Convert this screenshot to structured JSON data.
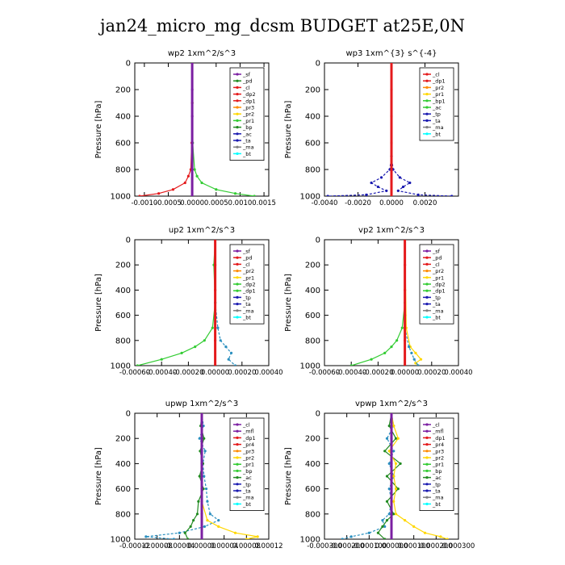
{
  "title": "jan24_micro_mg_dcsm  BUDGET at25E,0N",
  "colors": {
    "red": "#e41a1c",
    "purple": "#7b1fa2",
    "orange": "#ff8c00",
    "yellow": "#ffd700",
    "green": "#33cc33",
    "darkgreen": "#228b22",
    "navy": "#1a1ab0",
    "teal": "#2a8fbf",
    "cyan": "#00ffff",
    "gray": "#808080"
  },
  "chart_data": [
    {
      "type": "line",
      "title": "wp2   1xm^2/s^3",
      "ylabel": "Pressure [hPa]",
      "xlim": [
        -0.0012,
        0.0016
      ],
      "ylim": [
        1000,
        0
      ],
      "xticks": [
        "-0.0010",
        "-0.0005",
        "0.0000",
        "0.0005",
        "0.0010",
        "0.0015"
      ],
      "xtick_values": [
        -0.001,
        -0.0005,
        0.0,
        0.0005,
        0.001,
        0.0015
      ],
      "yticks": [
        "0",
        "200",
        "400",
        "600",
        "800",
        "1000"
      ],
      "legend": [
        "_sf",
        "_pd",
        "_cl",
        "_dp2",
        "_dp1",
        "_pr3",
        "_pr2",
        "_pr1",
        "_bp",
        "_ac",
        "_ta",
        "_ma",
        "_bt"
      ],
      "legend_colors": [
        "purple",
        "darkgreen",
        "red",
        "red",
        "red",
        "orange",
        "yellow",
        "green",
        "darkgreen",
        "navy",
        "navy",
        "gray",
        "cyan"
      ],
      "legend_box": "upper-right",
      "series": [
        {
          "name": "_pr1",
          "color": "green",
          "p": [
            0,
            300,
            600,
            800,
            850,
            900,
            950,
            980,
            1000
          ],
          "v": [
            0.0,
            0.0,
            1e-05,
            5e-05,
            0.0001,
            0.0002,
            0.0005,
            0.0009,
            0.0013
          ]
        },
        {
          "name": "_cl",
          "color": "red",
          "p": [
            0,
            300,
            600,
            800,
            850,
            900,
            950,
            980,
            1000
          ],
          "v": [
            0.0,
            0.0,
            -1e-05,
            -3e-05,
            -8e-05,
            -0.00015,
            -0.0004,
            -0.0007,
            -0.0011
          ]
        },
        {
          "name": "_bt",
          "color": "purple",
          "p": [
            0,
            200,
            400,
            600,
            800,
            1000
          ],
          "v": [
            0.0,
            0.0,
            0.0,
            0.0,
            0.0,
            0.0
          ]
        }
      ]
    },
    {
      "type": "line",
      "title": "wp3   1xm^{3} s^{-4}",
      "ylabel": "Pressure [hPa]",
      "xlim": [
        -0.004,
        0.004
      ],
      "ylim": [
        1000,
        0
      ],
      "xticks": [
        "-0.0040",
        "-0.0020",
        "0.0000",
        "0.0020"
      ],
      "xtick_values": [
        -0.004,
        -0.002,
        0.0,
        0.002
      ],
      "yticks": [
        "0",
        "200",
        "400",
        "600",
        "800",
        "1000"
      ],
      "legend": [
        "_cl",
        "_dp1",
        "_pr2",
        "_pr1",
        "_bp1",
        "_ac",
        "_tp",
        "_ta",
        "_ma",
        "_bt"
      ],
      "legend_colors": [
        "red",
        "red",
        "orange",
        "yellow",
        "green",
        "green",
        "navy",
        "navy",
        "gray",
        "cyan"
      ],
      "legend_box": "upper-right",
      "series": [
        {
          "name": "_tp",
          "color": "navy",
          "p": [
            0,
            700,
            800,
            860,
            900,
            930,
            960,
            990,
            1000
          ],
          "v": [
            0.0,
            0.0,
            -0.0001,
            -0.0006,
            -0.0012,
            -0.0008,
            -0.0003,
            -0.0015,
            -0.0038
          ]
        },
        {
          "name": "_ta",
          "color": "navy",
          "p": [
            0,
            700,
            800,
            860,
            900,
            930,
            960,
            990,
            1000
          ],
          "v": [
            0.0,
            0.0,
            0.0001,
            0.0005,
            0.0011,
            0.0007,
            0.0004,
            0.0016,
            0.0036
          ]
        },
        {
          "name": "_cl",
          "color": "red",
          "p": [
            0,
            200,
            400,
            600,
            800,
            1000
          ],
          "v": [
            0.0,
            0.0,
            0.0,
            0.0,
            0.0,
            0.0
          ]
        }
      ]
    },
    {
      "type": "line",
      "title": "up2   1xm^2/s^3",
      "ylabel": "Pressure [hPa]",
      "xlim": [
        -0.0006,
        0.0004
      ],
      "ylim": [
        1000,
        0
      ],
      "xticks": [
        "-0.00060",
        "-0.00040",
        "-0.00020",
        "0.00000",
        "0.00020",
        "0.00040"
      ],
      "xtick_values": [
        -0.0006,
        -0.0004,
        -0.0002,
        0.0,
        0.0002,
        0.0004
      ],
      "yticks": [
        "0",
        "200",
        "400",
        "600",
        "800",
        "1000"
      ],
      "legend": [
        "_sf",
        "_pd",
        "_cl",
        "_pr2",
        "_pr1",
        "_dp2",
        "_dp1",
        "_tp",
        "_ta",
        "_ma",
        "_bt"
      ],
      "legend_colors": [
        "purple",
        "red",
        "red",
        "orange",
        "yellow",
        "green",
        "green",
        "navy",
        "navy",
        "gray",
        "cyan"
      ],
      "legend_box": "upper-right",
      "series": [
        {
          "name": "_pr1",
          "color": "green",
          "p": [
            0,
            200,
            500,
            700,
            800,
            850,
            900,
            950,
            1000
          ],
          "v": [
            0.0,
            -1e-05,
            0.0,
            -2e-05,
            -8e-05,
            -0.00015,
            -0.00025,
            -0.0004,
            -0.00058
          ]
        },
        {
          "name": "_tp",
          "color": "teal",
          "p": [
            0,
            500,
            700,
            800,
            850,
            900,
            950,
            1000
          ],
          "v": [
            0.0,
            0.0,
            2e-05,
            4e-05,
            8e-05,
            0.00012,
            0.0001,
            0.00015
          ]
        },
        {
          "name": "_cl",
          "color": "red",
          "p": [
            0,
            200,
            400,
            600,
            800,
            1000
          ],
          "v": [
            0.0,
            0.0,
            0.0,
            0.0,
            0.0,
            0.0
          ]
        }
      ]
    },
    {
      "type": "line",
      "title": "vp2   1xm^2/s^3",
      "ylabel": "Pressure [hPa]",
      "xlim": [
        -0.0006,
        0.0004
      ],
      "ylim": [
        1000,
        0
      ],
      "xticks": [
        "-0.00060",
        "-0.00040",
        "-0.00020",
        "0.00000",
        "0.00020",
        "0.00040"
      ],
      "xtick_values": [
        -0.0006,
        -0.0004,
        -0.0002,
        0.0,
        0.0002,
        0.0004
      ],
      "yticks": [
        "0",
        "200",
        "400",
        "600",
        "800",
        "1000"
      ],
      "legend": [
        "_sf",
        "_pd",
        "_cl",
        "_pr2",
        "_pr1",
        "_dp2",
        "_dp1",
        "_tp",
        "_ta",
        "_ma",
        "_bt"
      ],
      "legend_colors": [
        "purple",
        "red",
        "red",
        "orange",
        "yellow",
        "green",
        "green",
        "navy",
        "navy",
        "gray",
        "cyan"
      ],
      "legend_box": "upper-right",
      "series": [
        {
          "name": "_pr1",
          "color": "green",
          "p": [
            0,
            500,
            700,
            800,
            850,
            900,
            950,
            1000
          ],
          "v": [
            0.0,
            0.0,
            -2e-05,
            -6e-05,
            -0.0001,
            -0.00015,
            -0.00025,
            -0.0004
          ]
        },
        {
          "name": "_pr2",
          "color": "yellow",
          "p": [
            0,
            700,
            850,
            900,
            950,
            980,
            1000
          ],
          "v": [
            0.0,
            1e-05,
            4e-05,
            8e-05,
            0.00012,
            8e-05,
            0.0001
          ]
        },
        {
          "name": "_tp",
          "color": "teal",
          "p": [
            0,
            700,
            850,
            900,
            950,
            1000
          ],
          "v": [
            0.0,
            0.0,
            3e-05,
            5e-05,
            7e-05,
            0.0001
          ]
        },
        {
          "name": "_cl",
          "color": "red",
          "p": [
            0,
            200,
            400,
            600,
            800,
            1000
          ],
          "v": [
            0.0,
            0.0,
            0.0,
            0.0,
            0.0,
            0.0
          ]
        }
      ]
    },
    {
      "type": "line",
      "title": "upwp   1xm^2/s^3",
      "ylabel": "Pressure [hPa]",
      "xlim": [
        -0.00012,
        0.00012
      ],
      "ylim": [
        1000,
        0
      ],
      "xticks": [
        "-0.00012",
        "-0.00008",
        "-0.00004",
        "0.00000",
        "0.00004",
        "0.00008",
        "0.00012"
      ],
      "xtick_values": [
        -0.00012,
        -8e-05,
        -4e-05,
        0.0,
        4e-05,
        8e-05,
        0.00012
      ],
      "yticks": [
        "0",
        "200",
        "400",
        "600",
        "800",
        "1000"
      ],
      "legend": [
        "_cl",
        "_mfl",
        "_dp1",
        "_pr4",
        "_pr3",
        "_pr2",
        "_pr1",
        "_bp",
        "_ac",
        "_tp",
        "_ta",
        "_ma",
        "_bt"
      ],
      "legend_colors": [
        "purple",
        "purple",
        "red",
        "red",
        "orange",
        "yellow",
        "green",
        "green",
        "darkgreen",
        "navy",
        "navy",
        "gray",
        "cyan"
      ],
      "legend_box": "upper-right",
      "series": [
        {
          "name": "_tp",
          "color": "teal",
          "p": [
            0,
            100,
            200,
            300,
            400,
            500,
            600,
            700,
            800,
            850,
            900,
            950,
            980,
            1000
          ],
          "v": [
            0.0,
            3e-06,
            -4e-06,
            6e-06,
            2e-06,
            4e-06,
            8e-06,
            1e-05,
            1.5e-05,
            3e-05,
            5e-06,
            -4e-05,
            -0.0001,
            -5e-05
          ]
        },
        {
          "name": "_pr2",
          "color": "yellow",
          "p": [
            0,
            700,
            850,
            900,
            950,
            980,
            1000
          ],
          "v": [
            0.0,
            0.0,
            1e-05,
            3e-05,
            6e-05,
            0.0001,
            8e-05
          ]
        },
        {
          "name": "_pr1",
          "color": "darkgreen",
          "p": [
            0,
            100,
            200,
            300,
            400,
            500,
            600,
            700,
            800,
            850,
            900,
            950,
            1000
          ],
          "v": [
            0.0,
            -2e-06,
            4e-06,
            -3e-06,
            2e-06,
            -4e-06,
            3e-06,
            -6e-06,
            -8e-06,
            -1.5e-05,
            -2e-05,
            -3e-05,
            -2.5e-05
          ]
        },
        {
          "name": "_cl",
          "color": "purple",
          "p": [
            0,
            200,
            400,
            600,
            800,
            1000
          ],
          "v": [
            0.0,
            0.0,
            0.0,
            0.0,
            0.0,
            0.0
          ]
        }
      ]
    },
    {
      "type": "line",
      "title": "vpwp   1xm^2/s^3",
      "ylabel": "Pressure [hPa]",
      "xlim": [
        -0.0003,
        0.0003
      ],
      "ylim": [
        1000,
        0
      ],
      "xticks": [
        "-0.000300",
        "-0.000200",
        "-0.000100",
        "0.000000",
        "0.000100",
        "0.000200",
        "0.000300"
      ],
      "xtick_values": [
        -0.0003,
        -0.0002,
        -0.0001,
        0.0,
        0.0001,
        0.0002,
        0.0003
      ],
      "yticks": [
        "0",
        "200",
        "400",
        "600",
        "800",
        "1000"
      ],
      "legend": [
        "_cl",
        "_mfl",
        "_dp1",
        "_pr4",
        "_pr3",
        "_pr2",
        "_pr1",
        "_bp",
        "_ac",
        "_tp",
        "_ta",
        "_ma",
        "_bt"
      ],
      "legend_colors": [
        "purple",
        "purple",
        "red",
        "red",
        "orange",
        "yellow",
        "green",
        "green",
        "darkgreen",
        "navy",
        "navy",
        "gray",
        "cyan"
      ],
      "legend_box": "upper-right",
      "series": [
        {
          "name": "_tp",
          "color": "teal",
          "p": [
            0,
            100,
            200,
            300,
            400,
            500,
            600,
            700,
            800,
            850,
            900,
            950,
            980,
            1000
          ],
          "v": [
            0.0,
            1e-05,
            -2e-05,
            1e-05,
            -1e-05,
            1e-05,
            -1e-05,
            0.0,
            -1e-05,
            -4e-05,
            -3e-05,
            -0.0001,
            -0.00018,
            -0.00022
          ]
        },
        {
          "name": "_pr1",
          "color": "darkgreen",
          "p": [
            0,
            100,
            200,
            300,
            400,
            500,
            600,
            700,
            800,
            850,
            900,
            950,
            1000
          ],
          "v": [
            0.0,
            -1e-05,
            2e-05,
            -3e-05,
            4e-05,
            -2e-05,
            3e-05,
            -2e-05,
            1e-05,
            -2e-05,
            -4e-05,
            -6e-05,
            -3e-05
          ]
        },
        {
          "name": "_pr2",
          "color": "yellow",
          "p": [
            0,
            100,
            200,
            300,
            400,
            500,
            600,
            700,
            800,
            850,
            900,
            950,
            980,
            1000
          ],
          "v": [
            0.0,
            1e-05,
            3e-05,
            -1e-05,
            2e-05,
            1e-05,
            2e-05,
            1e-05,
            2e-05,
            6e-05,
            0.0001,
            0.00015,
            0.00022,
            0.00025
          ]
        },
        {
          "name": "_cl",
          "color": "purple",
          "p": [
            0,
            200,
            400,
            600,
            800,
            1000
          ],
          "v": [
            0.0,
            0.0,
            0.0,
            0.0,
            0.0,
            0.0
          ]
        }
      ]
    }
  ]
}
